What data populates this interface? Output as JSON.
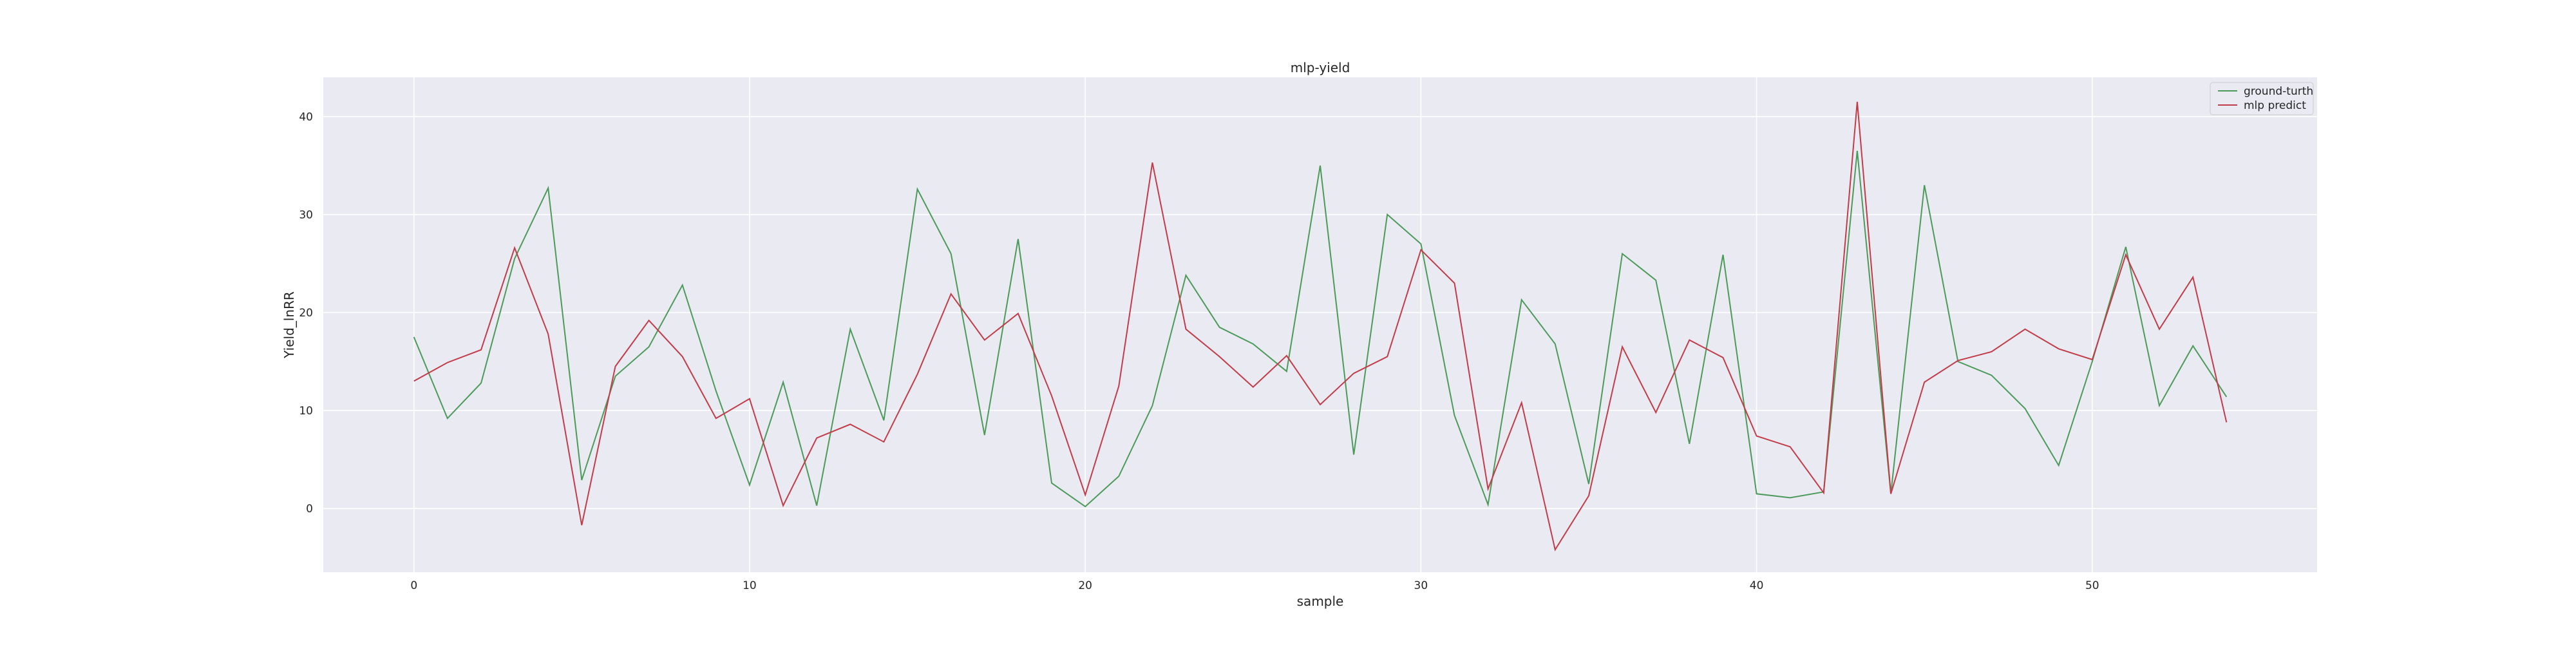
{
  "chart_data": {
    "type": "line",
    "title": "mlp-yield",
    "xlabel": "sample",
    "ylabel": "Yield_lnRR",
    "xlim": [
      -2.7,
      56.7
    ],
    "ylim": [
      -6.5,
      44.0
    ],
    "xticks": [
      0,
      10,
      20,
      30,
      40,
      50
    ],
    "yticks": [
      0,
      10,
      20,
      30,
      40
    ],
    "grid": true,
    "legend_position": "top-right",
    "x": [
      0,
      1,
      2,
      3,
      4,
      5,
      6,
      7,
      8,
      9,
      10,
      11,
      12,
      13,
      14,
      15,
      16,
      17,
      18,
      19,
      20,
      21,
      22,
      23,
      24,
      25,
      26,
      27,
      28,
      29,
      30,
      31,
      32,
      33,
      34,
      35,
      36,
      37,
      38,
      39,
      40,
      41,
      42,
      43,
      44,
      45,
      46,
      47,
      48,
      49,
      50,
      51,
      52,
      53,
      54
    ],
    "series": [
      {
        "name": "ground-turth",
        "color": "#4c9a5a",
        "values": [
          17.5,
          9.2,
          12.8,
          25.5,
          32.7,
          2.9,
          13.5,
          16.5,
          22.8,
          12.0,
          2.4,
          12.9,
          0.3,
          18.3,
          9.0,
          32.6,
          26.0,
          7.5,
          27.5,
          2.6,
          0.2,
          3.3,
          10.5,
          23.8,
          18.5,
          16.8,
          14.0,
          35.0,
          5.5,
          30.0,
          27.0,
          9.5,
          0.4,
          21.3,
          16.8,
          2.5,
          26.0,
          23.3,
          6.6,
          25.9,
          1.5,
          1.1,
          1.7,
          36.5,
          1.5,
          33.0,
          15.0,
          13.6,
          10.2,
          4.4,
          15.0,
          26.7,
          10.5,
          16.6,
          11.4
        ]
      },
      {
        "name": "mlp predict",
        "color": "#c23b48",
        "values": [
          13.0,
          14.9,
          16.2,
          26.6,
          17.8,
          -1.7,
          14.5,
          19.2,
          15.5,
          9.2,
          11.2,
          0.3,
          7.2,
          8.6,
          6.8,
          13.7,
          21.9,
          17.2,
          19.9,
          11.5,
          1.4,
          12.5,
          35.3,
          18.3,
          15.5,
          12.4,
          15.6,
          10.6,
          13.8,
          15.5,
          26.4,
          23.0,
          2.0,
          10.8,
          -4.2,
          1.3,
          16.5,
          9.8,
          17.2,
          15.4,
          7.4,
          6.3,
          1.6,
          41.5,
          1.5,
          12.9,
          15.1,
          16.0,
          18.3,
          16.3,
          15.2,
          25.9,
          18.3,
          23.6,
          8.8
        ]
      }
    ]
  }
}
